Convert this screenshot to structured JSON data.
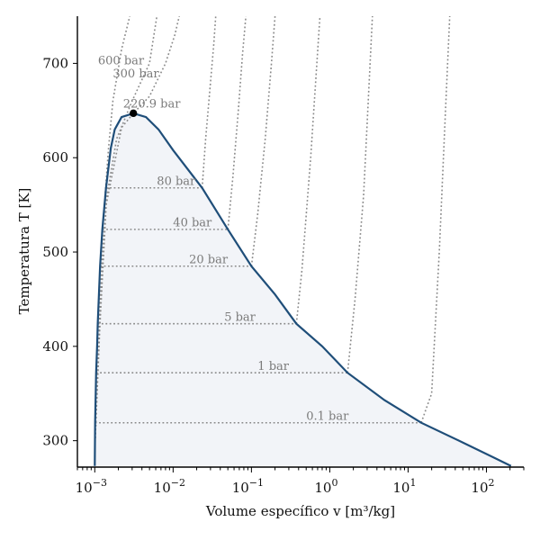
{
  "chart_data": {
    "type": "line",
    "xscale": "log",
    "xlim": [
      0.0006,
      300
    ],
    "ylim": [
      272,
      750
    ],
    "xlabel": "Volume específico v [m³/kg]",
    "ylabel": "Temperatura T [K]",
    "xticks": [
      {
        "value": 0.001,
        "base": "10",
        "exp": "−3"
      },
      {
        "value": 0.01,
        "base": "10",
        "exp": "−2"
      },
      {
        "value": 0.1,
        "base": "10",
        "exp": "−1"
      },
      {
        "value": 1,
        "base": "10",
        "exp": "0"
      },
      {
        "value": 10,
        "base": "10",
        "exp": "1"
      },
      {
        "value": 100,
        "base": "10",
        "exp": "2"
      }
    ],
    "yticks": [
      300,
      400,
      500,
      600,
      700
    ],
    "critical_point": {
      "v": 0.00311,
      "T": 647.1
    },
    "saturation_liquid": [
      [
        0.001,
        273.2
      ],
      [
        0.00101,
        320
      ],
      [
        0.00104,
        372
      ],
      [
        0.00107,
        400
      ],
      [
        0.00109,
        424
      ],
      [
        0.00117,
        485
      ],
      [
        0.00125,
        524
      ],
      [
        0.00139,
        568
      ],
      [
        0.0016,
        610
      ],
      [
        0.0018,
        630
      ],
      [
        0.0022,
        643
      ],
      [
        0.00311,
        647.1
      ]
    ],
    "saturation_vapor": [
      [
        0.00311,
        647.1
      ],
      [
        0.0045,
        643
      ],
      [
        0.0065,
        630
      ],
      [
        0.01,
        608
      ],
      [
        0.0235,
        568
      ],
      [
        0.05,
        524
      ],
      [
        0.1,
        485
      ],
      [
        0.2,
        455
      ],
      [
        0.375,
        424
      ],
      [
        0.8,
        400
      ],
      [
        1.69,
        372
      ],
      [
        5,
        343
      ],
      [
        14.7,
        319
      ],
      [
        50,
        298
      ],
      [
        206,
        273.2
      ]
    ],
    "isobars": [
      {
        "label": "0.1 bar",
        "T_sat": 319,
        "v_f": 0.00101,
        "v_g": 14.7,
        "superheat": [
          [
            14.7,
            319
          ],
          [
            20,
            350
          ],
          [
            25,
            500
          ],
          [
            30,
            650
          ],
          [
            34,
            750
          ]
        ]
      },
      {
        "label": "1 bar",
        "T_sat": 372,
        "v_f": 0.00104,
        "v_g": 1.69,
        "superheat": [
          [
            1.69,
            372
          ],
          [
            2.1,
            450
          ],
          [
            2.7,
            560
          ],
          [
            3.5,
            750
          ]
        ]
      },
      {
        "label": "5 bar",
        "T_sat": 424,
        "v_f": 0.00109,
        "v_g": 0.375,
        "superheat": [
          [
            0.375,
            424
          ],
          [
            0.44,
            480
          ],
          [
            0.57,
            600
          ],
          [
            0.75,
            750
          ]
        ]
      },
      {
        "label": "20 bar",
        "T_sat": 485,
        "v_f": 0.00117,
        "v_g": 0.1,
        "superheat": [
          [
            0.1,
            485
          ],
          [
            0.12,
            540
          ],
          [
            0.15,
            620
          ],
          [
            0.18,
            700
          ],
          [
            0.2,
            750
          ]
        ]
      },
      {
        "label": "40 bar",
        "T_sat": 524,
        "v_f": 0.00125,
        "v_g": 0.05,
        "superheat": [
          [
            0.05,
            524
          ],
          [
            0.058,
            580
          ],
          [
            0.068,
            650
          ],
          [
            0.077,
            710
          ],
          [
            0.085,
            750
          ]
        ]
      },
      {
        "label": "80 bar",
        "T_sat": 568,
        "v_f": 0.00139,
        "v_g": 0.0235,
        "superheat": [
          [
            0.0235,
            568
          ],
          [
            0.026,
            620
          ],
          [
            0.03,
            680
          ],
          [
            0.033,
            720
          ],
          [
            0.035,
            750
          ]
        ]
      },
      {
        "label": "220.9 bar",
        "T_sat": null,
        "v_f": null,
        "v_g": null,
        "superheat": [
          [
            0.001,
            290
          ],
          [
            0.00116,
            420
          ],
          [
            0.0014,
            550
          ],
          [
            0.0022,
            632
          ],
          [
            0.0031,
            647
          ],
          [
            0.005,
            665
          ],
          [
            0.008,
            700
          ],
          [
            0.0105,
            730
          ],
          [
            0.012,
            750
          ]
        ]
      },
      {
        "label": "300 bar",
        "T_sat": null,
        "v_f": null,
        "v_g": null,
        "superheat": [
          [
            0.001,
            290
          ],
          [
            0.00116,
            430
          ],
          [
            0.0014,
            555
          ],
          [
            0.0019,
            620
          ],
          [
            0.003,
            660
          ],
          [
            0.005,
            700
          ],
          [
            0.0062,
            750
          ]
        ]
      },
      {
        "label": "600 bar",
        "T_sat": null,
        "v_f": null,
        "v_g": null,
        "superheat": [
          [
            0.001,
            290
          ],
          [
            0.00115,
            430
          ],
          [
            0.0013,
            540
          ],
          [
            0.0015,
            610
          ],
          [
            0.0017,
            660
          ],
          [
            0.0022,
            715
          ],
          [
            0.0028,
            750
          ]
        ]
      }
    ],
    "isobar_labels": [
      {
        "text": "600 bar",
        "v": 0.0011,
        "T": 699
      },
      {
        "text": "300 bar",
        "v": 0.0017,
        "T": 685
      },
      {
        "text": "220.9 bar",
        "v": 0.0023,
        "T": 653
      },
      {
        "text": "80 bar",
        "v": 0.0062,
        "T": 571
      },
      {
        "text": "40 bar",
        "v": 0.01,
        "T": 527
      },
      {
        "text": "20 bar",
        "v": 0.016,
        "T": 488
      },
      {
        "text": "5 bar",
        "v": 0.045,
        "T": 427
      },
      {
        "text": "1 bar",
        "v": 0.12,
        "T": 375
      },
      {
        "text": "0.1 bar",
        "v": 0.5,
        "T": 322
      }
    ],
    "colors": {
      "dome_line": "#1f4e79",
      "dome_fill": "#f2f4f8",
      "isobar": "#8a8a8a",
      "label": "#7a7a7a",
      "critical_point": "#000000"
    }
  }
}
